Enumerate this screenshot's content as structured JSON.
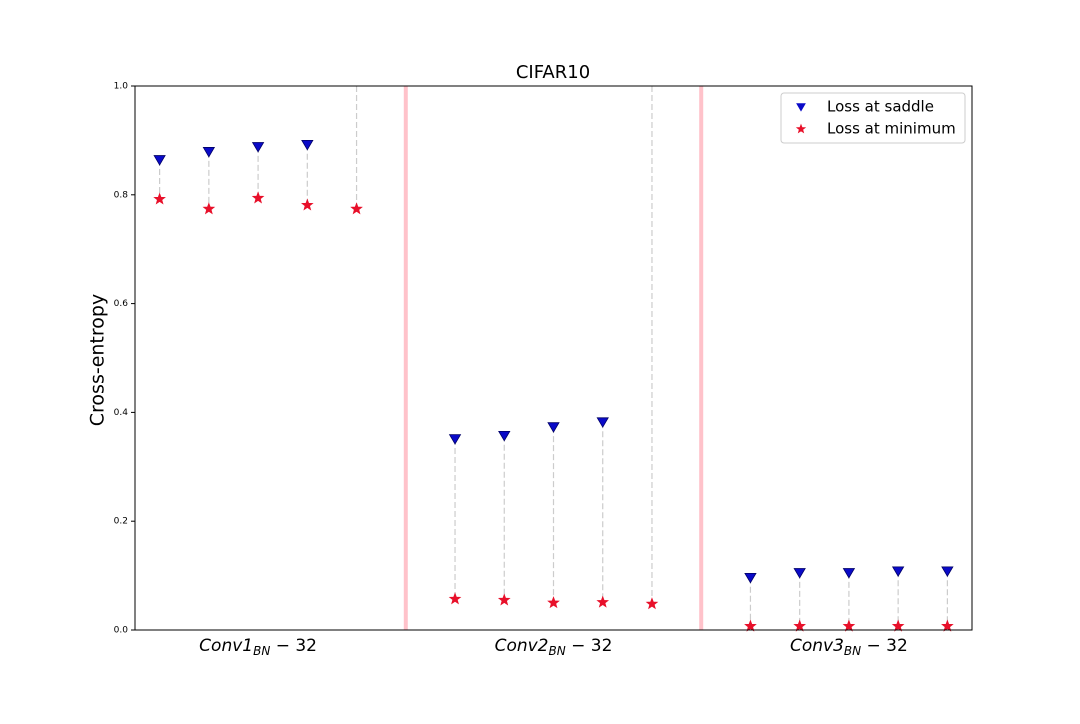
{
  "chart_data": {
    "type": "scatter",
    "title": "CIFAR10",
    "y_label": "Cross-entropy",
    "groups": [
      {
        "name": "Conv1",
        "sub": "BN",
        "suffix": "− 32"
      },
      {
        "name": "Conv2",
        "sub": "BN",
        "suffix": "− 32"
      },
      {
        "name": "Conv3",
        "sub": "BN",
        "suffix": "− 32"
      }
    ],
    "series": [
      {
        "name": "Loss at saddle",
        "color": "#0a0ac8",
        "marker": "triangle",
        "values": [
          0.864,
          0.879,
          0.888,
          0.892,
          null,
          0.351,
          0.357,
          0.373,
          0.382,
          null,
          0.096,
          0.105,
          0.105,
          0.108,
          0.108
        ]
      },
      {
        "name": "Loss at minimum",
        "color": "#e8102a",
        "marker": "star",
        "values": [
          0.792,
          0.774,
          0.794,
          0.781,
          0.774,
          0.057,
          0.055,
          0.05,
          0.051,
          0.048,
          0.007,
          0.007,
          0.007,
          0.007,
          0.007
        ]
      }
    ],
    "ylim": [
      0,
      1
    ],
    "yticks": [
      {
        "value": 0,
        "label": "0.0"
      },
      {
        "value": 0.2,
        "label": "0.2"
      },
      {
        "value": 0.4,
        "label": "0.4"
      },
      {
        "value": 0.6,
        "label": "0.6"
      },
      {
        "value": 0.8,
        "label": "0.8"
      },
      {
        "value": 1,
        "label": "1.0"
      }
    ],
    "legend": "upper right"
  }
}
